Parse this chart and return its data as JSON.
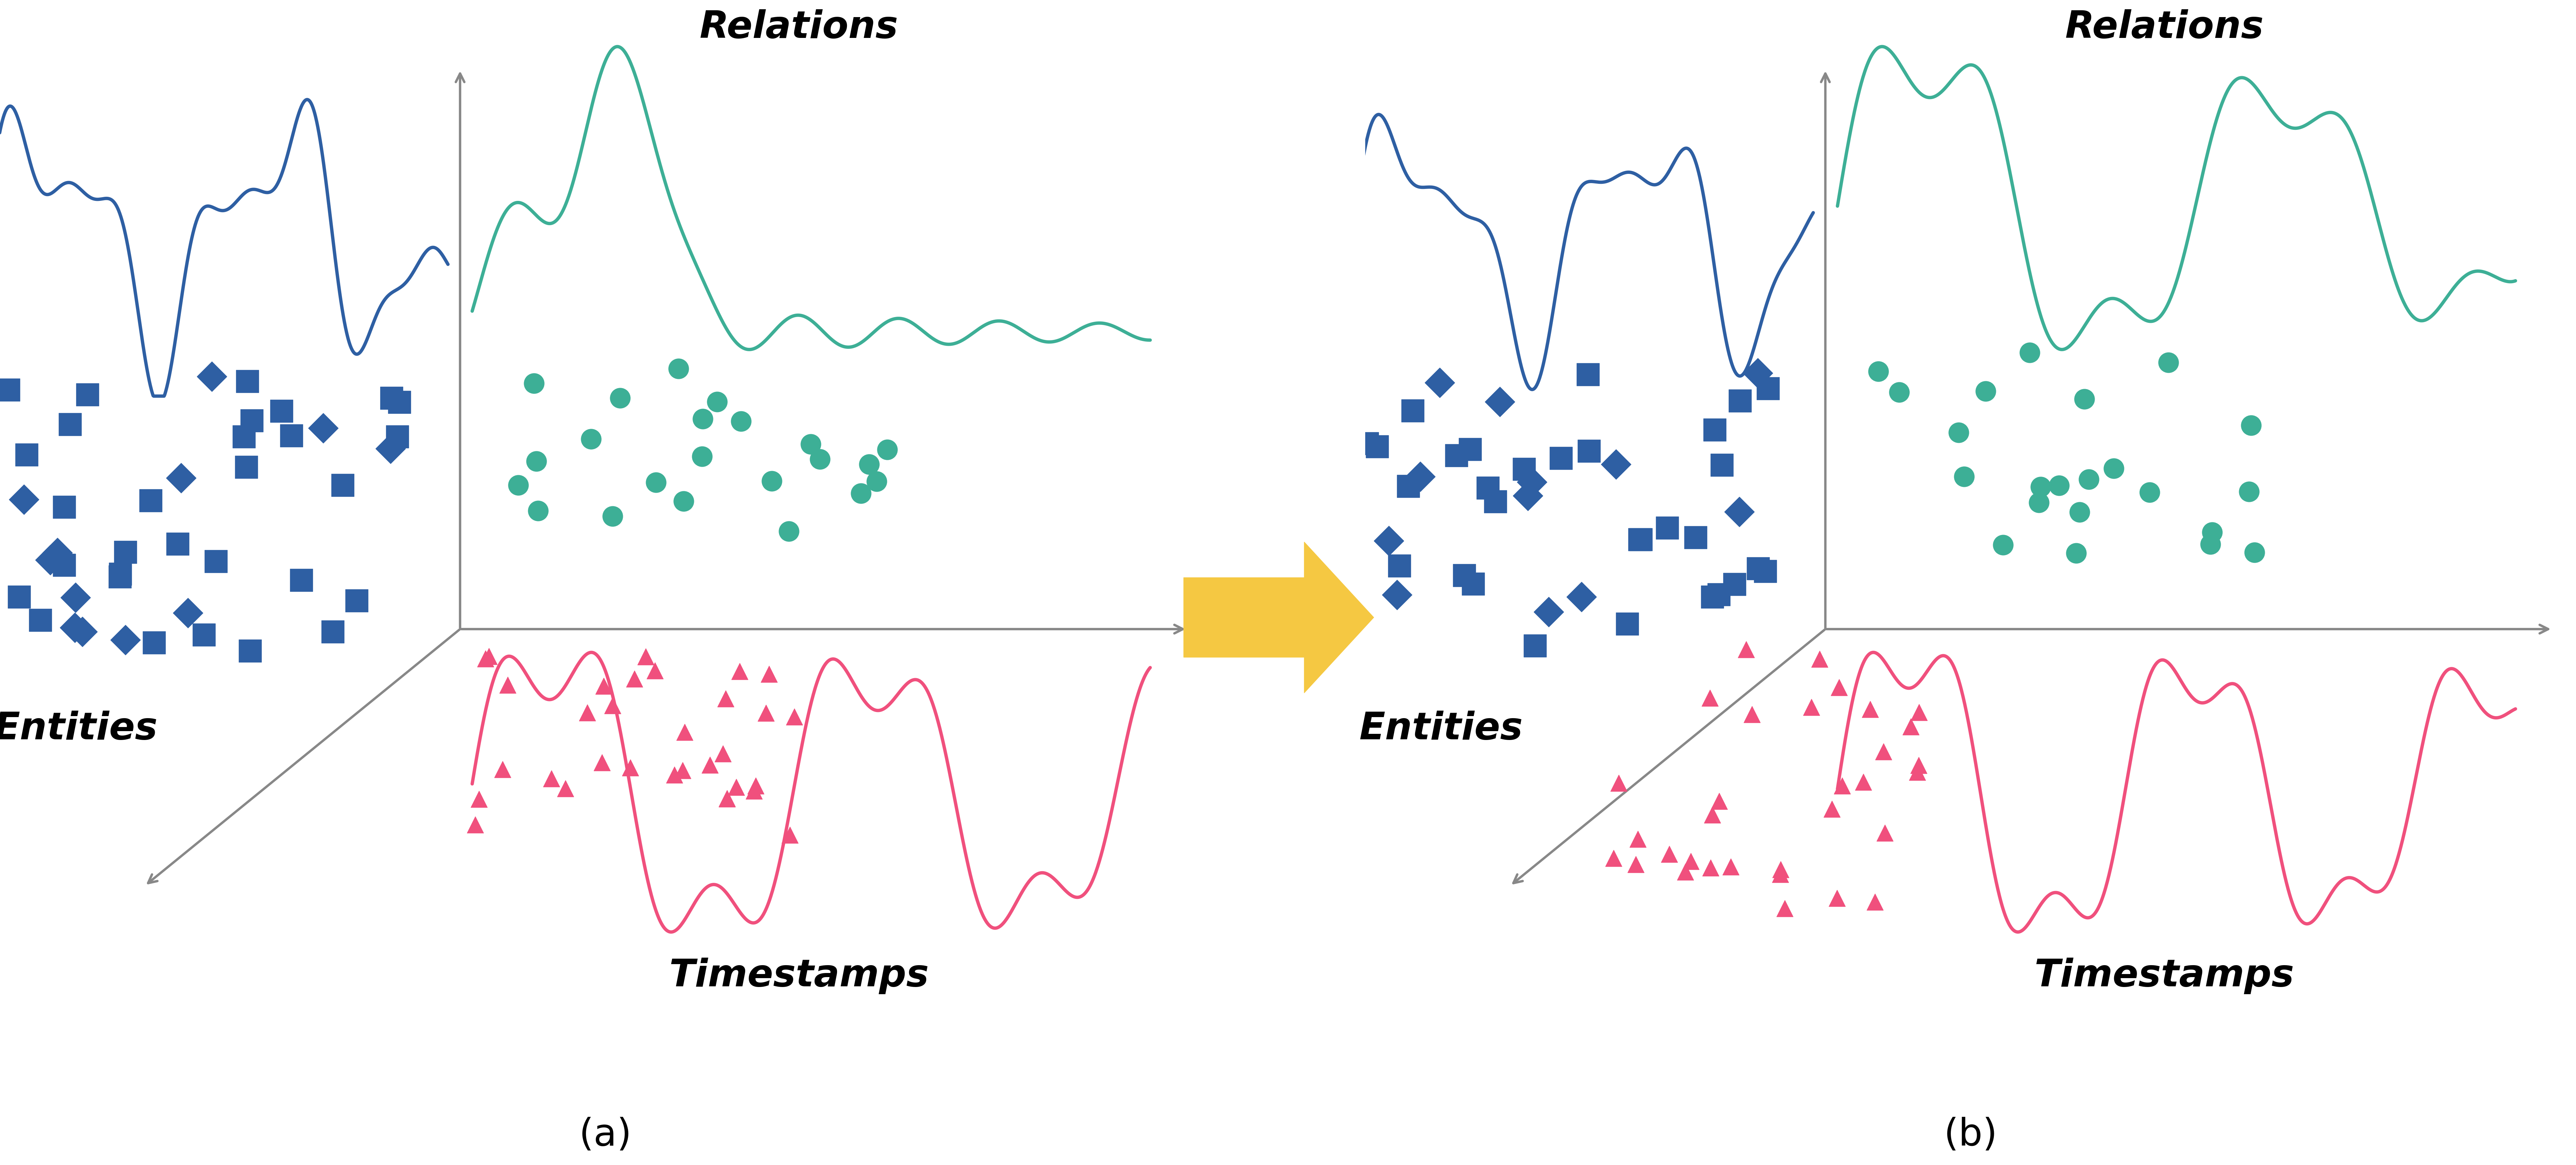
{
  "bg_color": "#ffffff",
  "navy_color": "#2e5fa3",
  "teal_color": "#3daf96",
  "pink_color": "#f0507d",
  "arrow_color": "#f5c842",
  "axis_color": "#888888",
  "label_a": "(a)",
  "label_b": "(b)",
  "relations_label": "Relations",
  "entities_label": "Entities",
  "timestamps_label": "Timestamps",
  "line_lw": 7.0,
  "axis_lw": 5.0,
  "font_size_labels": 80,
  "font_size_ab": 80,
  "scatter_size_navy": 2200,
  "scatter_size_teal": 1800,
  "scatter_size_pink": 1200
}
